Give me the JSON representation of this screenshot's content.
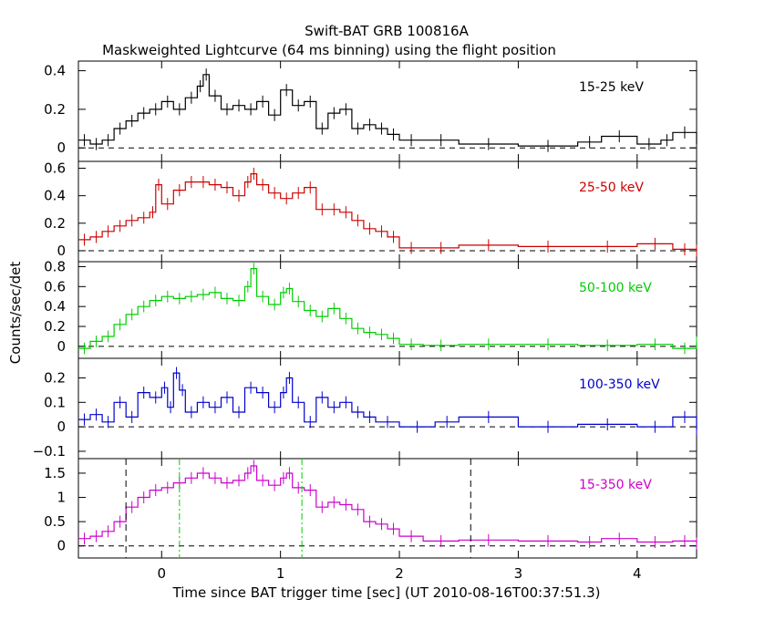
{
  "title": "Swift-BAT GRB 100816A",
  "subtitle": "Maskweighted Lightcurve (64 ms binning) using the flight position",
  "xlabel": "Time since BAT trigger time [sec] (UT 2010-08-16T00:37:51.3)",
  "ylabel": "Counts/sec/det",
  "colors": {
    "axis": "#000000",
    "guide": "#000000",
    "interval": "#00cc00"
  },
  "chart_data": [
    {
      "type": "line",
      "band": "15-25 keV",
      "color": "#000000",
      "xlim": [
        -0.7,
        4.5
      ],
      "ylim": [
        -0.07,
        0.45
      ],
      "yticks": [
        0,
        0.2,
        0.4
      ],
      "ytick_labels": [
        "0",
        "0.2",
        "0.4"
      ],
      "x": [
        -0.7,
        -0.6,
        -0.5,
        -0.4,
        -0.3,
        -0.2,
        -0.1,
        0.0,
        0.1,
        0.2,
        0.3,
        0.35,
        0.4,
        0.5,
        0.6,
        0.7,
        0.8,
        0.9,
        1.0,
        1.1,
        1.2,
        1.3,
        1.4,
        1.5,
        1.6,
        1.7,
        1.8,
        1.9,
        2.0,
        2.2,
        2.5,
        3.0,
        3.5,
        3.7,
        4.0,
        4.2,
        4.3,
        4.5
      ],
      "y": [
        0.04,
        0.02,
        0.04,
        0.1,
        0.14,
        0.18,
        0.2,
        0.24,
        0.2,
        0.26,
        0.32,
        0.38,
        0.27,
        0.2,
        0.22,
        0.2,
        0.24,
        0.17,
        0.3,
        0.22,
        0.24,
        0.1,
        0.18,
        0.2,
        0.1,
        0.12,
        0.1,
        0.07,
        0.04,
        0.04,
        0.02,
        0.01,
        0.03,
        0.06,
        0.02,
        0.04,
        0.08,
        0.02
      ],
      "markers": []
    },
    {
      "type": "line",
      "band": "25-50 keV",
      "color": "#cc0000",
      "xlim": [
        -0.7,
        4.5
      ],
      "ylim": [
        -0.08,
        0.65
      ],
      "yticks": [
        0,
        0.2,
        0.4,
        0.6
      ],
      "ytick_labels": [
        "0",
        "0.2",
        "0.4",
        "0.6"
      ],
      "x": [
        -0.7,
        -0.6,
        -0.5,
        -0.4,
        -0.3,
        -0.2,
        -0.1,
        -0.05,
        0.0,
        0.1,
        0.2,
        0.3,
        0.4,
        0.5,
        0.6,
        0.7,
        0.75,
        0.8,
        0.9,
        1.0,
        1.1,
        1.2,
        1.3,
        1.4,
        1.5,
        1.6,
        1.7,
        1.8,
        1.9,
        2.0,
        2.2,
        2.5,
        3.0,
        3.5,
        4.0,
        4.3,
        4.5
      ],
      "y": [
        0.08,
        0.1,
        0.14,
        0.18,
        0.22,
        0.24,
        0.28,
        0.48,
        0.34,
        0.44,
        0.5,
        0.5,
        0.48,
        0.46,
        0.4,
        0.5,
        0.56,
        0.48,
        0.42,
        0.38,
        0.42,
        0.46,
        0.3,
        0.3,
        0.28,
        0.22,
        0.16,
        0.14,
        0.1,
        0.02,
        0.02,
        0.04,
        0.03,
        0.03,
        0.05,
        0.01,
        0.0
      ],
      "markers": []
    },
    {
      "type": "line",
      "band": "50-100 keV",
      "color": "#00cc00",
      "xlim": [
        -0.7,
        4.5
      ],
      "ylim": [
        -0.12,
        0.85
      ],
      "yticks": [
        0,
        0.2,
        0.4,
        0.6,
        0.8
      ],
      "ytick_labels": [
        "0",
        "0.2",
        "0.4",
        "0.6",
        "0.8"
      ],
      "x": [
        -0.7,
        -0.6,
        -0.5,
        -0.4,
        -0.3,
        -0.2,
        -0.1,
        0.0,
        0.1,
        0.2,
        0.3,
        0.4,
        0.5,
        0.6,
        0.7,
        0.75,
        0.8,
        0.9,
        1.0,
        1.05,
        1.1,
        1.2,
        1.3,
        1.4,
        1.5,
        1.6,
        1.7,
        1.8,
        1.9,
        2.0,
        2.2,
        2.5,
        3.0,
        3.5,
        4.0,
        4.3,
        4.5
      ],
      "y": [
        -0.02,
        0.05,
        0.1,
        0.22,
        0.32,
        0.4,
        0.46,
        0.5,
        0.48,
        0.5,
        0.52,
        0.54,
        0.48,
        0.46,
        0.6,
        0.78,
        0.5,
        0.42,
        0.54,
        0.58,
        0.45,
        0.36,
        0.3,
        0.38,
        0.28,
        0.18,
        0.14,
        0.12,
        0.08,
        0.02,
        0.01,
        0.02,
        0.02,
        0.01,
        0.02,
        -0.02,
        0.04
      ],
      "markers": []
    },
    {
      "type": "line",
      "band": "100-350 keV",
      "color": "#0000cc",
      "xlim": [
        -0.7,
        4.5
      ],
      "ylim": [
        -0.13,
        0.28
      ],
      "yticks": [
        -0.1,
        0,
        0.1,
        0.2
      ],
      "ytick_labels": [
        "−0.1",
        "0",
        "0.1",
        "0.2"
      ],
      "x": [
        -0.7,
        -0.6,
        -0.5,
        -0.4,
        -0.3,
        -0.2,
        -0.1,
        0.0,
        0.05,
        0.1,
        0.15,
        0.2,
        0.3,
        0.4,
        0.5,
        0.6,
        0.7,
        0.8,
        0.9,
        1.0,
        1.05,
        1.1,
        1.2,
        1.3,
        1.4,
        1.5,
        1.6,
        1.7,
        1.8,
        2.0,
        2.3,
        2.5,
        3.0,
        3.5,
        4.0,
        4.3,
        4.5
      ],
      "y": [
        0.03,
        0.05,
        0.02,
        0.1,
        0.04,
        0.14,
        0.12,
        0.16,
        0.08,
        0.22,
        0.15,
        0.06,
        0.1,
        0.08,
        0.12,
        0.06,
        0.16,
        0.14,
        0.08,
        0.14,
        0.2,
        0.1,
        0.02,
        0.12,
        0.08,
        0.1,
        0.06,
        0.04,
        0.02,
        0.0,
        0.02,
        0.04,
        0.0,
        0.01,
        0.0,
        0.04,
        -0.01
      ],
      "markers": []
    },
    {
      "type": "line",
      "band": "15-350 keV",
      "color": "#cc00cc",
      "xlim": [
        -0.7,
        4.5
      ],
      "ylim": [
        -0.25,
        1.8
      ],
      "yticks": [
        0,
        0.5,
        1,
        1.5
      ],
      "ytick_labels": [
        "0",
        "0.5",
        "1",
        "1.5"
      ],
      "x": [
        -0.7,
        -0.6,
        -0.5,
        -0.4,
        -0.3,
        -0.2,
        -0.1,
        0.0,
        0.1,
        0.2,
        0.3,
        0.4,
        0.5,
        0.6,
        0.7,
        0.75,
        0.8,
        0.9,
        1.0,
        1.05,
        1.1,
        1.2,
        1.3,
        1.4,
        1.5,
        1.6,
        1.7,
        1.8,
        1.9,
        2.0,
        2.2,
        2.5,
        3.0,
        3.5,
        3.7,
        4.0,
        4.3,
        4.5
      ],
      "y": [
        0.15,
        0.2,
        0.3,
        0.5,
        0.8,
        1.0,
        1.15,
        1.2,
        1.3,
        1.4,
        1.5,
        1.4,
        1.3,
        1.35,
        1.5,
        1.65,
        1.35,
        1.25,
        1.4,
        1.5,
        1.2,
        1.15,
        0.8,
        0.9,
        0.85,
        0.75,
        0.5,
        0.45,
        0.35,
        0.2,
        0.1,
        0.12,
        0.1,
        0.08,
        0.15,
        0.08,
        0.1,
        0.05
      ],
      "markers": [
        {
          "x": -0.3,
          "style": "dashed",
          "color": "#000000"
        },
        {
          "x": 0.15,
          "style": "dashdot",
          "color": "#00cc00"
        },
        {
          "x": 1.18,
          "style": "dashdot",
          "color": "#00cc00"
        },
        {
          "x": 2.6,
          "style": "dashed",
          "color": "#000000"
        }
      ]
    }
  ],
  "x_axis": {
    "ticks": [
      0,
      1,
      2,
      3,
      4
    ],
    "tick_labels": [
      "0",
      "1",
      "2",
      "3",
      "4"
    ]
  }
}
